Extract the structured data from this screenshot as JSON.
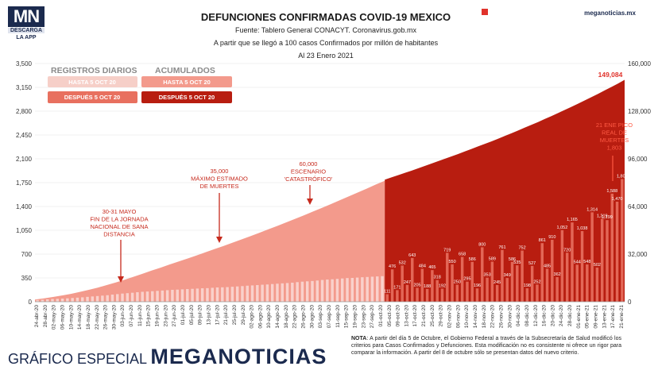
{
  "logo": {
    "letters": "MN",
    "line1": "DESCARGA",
    "line2": "LA APP"
  },
  "header": {
    "title": "DEFUNCIONES CONFIRMADAS COVID-19 MEXICO",
    "source": "Fuente: Tablero General CONACYT. Coronavirus.gob.mx",
    "subtitle": "A partir que se llegó a 100 casos Confirmados por millón de habitantes",
    "date": "Al  23 Enero 2021",
    "brand": "meganoticias.mx"
  },
  "footer": {
    "left_small": "GRÁFICO ESPECIAL",
    "left_big": "MEGANOTICIAS",
    "note_label": "NOTA",
    "note_text": ": A partir del día 5 de Octubre, el Gobierno Federal a través de la Subsecretaría de Salud modificó los criterios para Casos Confirmados y Defunciones. Esta modificación no es consistente ni ofrece un rigor para comparar la información. A partir del 8 de octubre sólo se presentan datos del nuevo criterio."
  },
  "legend": {
    "diarios_title": "REGISTROS DIARIOS",
    "acumulados_title": "ACUMULADOS",
    "hasta": "HASTA 5 OCT 20",
    "despues": "DESPUÉS 5 OCT 20"
  },
  "colors": {
    "daily_before": "#f6cfc8",
    "daily_after": "#e8705f",
    "cum_before": "#f39a8c",
    "cum_after": "#b81d10",
    "annotation": "#c62a1d",
    "axis_text": "#333333"
  },
  "annotations": {
    "a1": [
      "30-31 MAYO",
      "FIN DE LA JORNADA",
      "NACIONAL DE SANA",
      "DISTANCIA"
    ],
    "a2": [
      "35,000",
      "MÁXIMO ESTIMADO",
      "DE MUERTES"
    ],
    "a3": [
      "60,000",
      "ESCENARIO",
      "'CATASTRÓFICO'"
    ],
    "a4": [
      "21 ENE PICO",
      "REAL DE",
      "MUERTES",
      "1,803"
    ],
    "last_total": "149,084"
  },
  "chart_data": {
    "type": "bar",
    "title": "DEFUNCIONES CONFIRMADAS COVID-19 MEXICO",
    "left_axis": {
      "ylim": [
        0,
        3500
      ],
      "ticks": [
        "0",
        "350",
        "700",
        "1,050",
        "1,400",
        "1,750",
        "2,100",
        "2,450",
        "2,800",
        "3,150",
        "3,500"
      ]
    },
    "right_axis": {
      "ylim": [
        0,
        160000
      ],
      "ticks": [
        "0",
        "32,000",
        "64,000",
        "96,000",
        "128,000",
        "160,000"
      ]
    },
    "x_tick_labels": [
      "24-abr-20",
      "28-abr-20",
      "02-may-20",
      "06-may-20",
      "10-may-20",
      "14-may-20",
      "18-may-20",
      "22-may-20",
      "26-may-20",
      "30-may-20",
      "03-jun-20",
      "07-jun-20",
      "11-jun-20",
      "15-jun-20",
      "19-jun-20",
      "23-jun-20",
      "27-jun-20",
      "01-jul-20",
      "05-jul-20",
      "09-jul-20",
      "13-jul-20",
      "17-jul-20",
      "21-jul-20",
      "25-jul-20",
      "29-jul-20",
      "02-ago-20",
      "06-ago-20",
      "10-ago-20",
      "14-ago-20",
      "18-ago-20",
      "22-ago-20",
      "26-ago-20",
      "30-ago-20",
      "03-sep-20",
      "07-sep-20",
      "11-sep-20",
      "15-sep-20",
      "19-sep-20",
      "23-sep-20",
      "27-sep-20",
      "01-oct-20",
      "05-oct-20",
      "09-oct-20",
      "13-oct-20",
      "17-oct-20",
      "21-oct-20",
      "25-oct-20",
      "29-oct-20",
      "02-nov-20",
      "06-nov-20",
      "10-nov-20",
      "14-nov-20",
      "18-nov-20",
      "22-nov-20",
      "26-nov-20",
      "30-nov-20",
      "04-dic-20",
      "08-dic-20",
      "12-dic-20",
      "16-dic-20",
      "20-dic-20",
      "24-dic-20",
      "28-dic-20",
      "01-ene-21",
      "05-ene-21",
      "09-ene-21",
      "13-ene-21",
      "17-ene-21",
      "21-ene-21"
    ],
    "series": [
      {
        "name": "HASTA 5 OCT 20",
        "daily": [
          25,
          30,
          35,
          40,
          42,
          46,
          50,
          55,
          60,
          65,
          72,
          78,
          84,
          90,
          96,
          105,
          112,
          120,
          126,
          132,
          140,
          146,
          150,
          155,
          160,
          165,
          170,
          175,
          178,
          182,
          186,
          190,
          194,
          198,
          200,
          205,
          210,
          212,
          215,
          220,
          225,
          230,
          236,
          240,
          245,
          250,
          254,
          260,
          265,
          270,
          275,
          280,
          288,
          295,
          300,
          305,
          312,
          320,
          326,
          330,
          336,
          342,
          348,
          350,
          355,
          360,
          364,
          368,
          372,
          376
        ],
        "cumulative": [
          1500,
          2300,
          3200,
          4200,
          5300,
          6600,
          8000,
          9500,
          11200,
          12900,
          14800,
          16800,
          18800,
          20900,
          22900,
          25000,
          27000,
          29000,
          31100,
          33200,
          35300,
          37400,
          39600,
          41800,
          44000,
          46300,
          48600,
          50900,
          53300,
          55700,
          58100,
          60600,
          63100,
          65600,
          68200,
          70800,
          73400,
          76000,
          78700,
          81300
        ]
      },
      {
        "name": "DESPUÉS 5 OCT 20",
        "daily": [
          111,
          476,
          171,
          532,
          247,
          643,
          205,
          484,
          188,
          465,
          318,
          192,
          719,
          550,
          250,
          658,
          295,
          586,
          196,
          800,
          353,
          589,
          245,
          761,
          349,
          586,
          535,
          752,
          198,
          527,
          252,
          861,
          485,
          910,
          362,
          1052,
          720,
          1165,
          544,
          1038,
          548,
          1314,
          502,
          1219,
          1199,
          1588,
          1470,
          1803
        ],
        "cumulative": [
          82000,
          83500,
          85000,
          86500,
          88000,
          89600,
          91200,
          92800,
          94400,
          96000,
          97600,
          99200,
          100900,
          102600,
          104300,
          106000,
          107700,
          109500,
          111300,
          113100,
          115000,
          116900,
          118800,
          120700,
          122700,
          124700,
          126700,
          128800,
          130900,
          133000,
          135200,
          137400,
          139600,
          141900,
          144200,
          146500,
          149084
        ]
      }
    ],
    "daily_labels_after": [
      "111",
      "476",
      "171",
      "532",
      "247",
      "643",
      "205",
      "484",
      "188",
      "465",
      "318",
      "192",
      "719",
      "550",
      "250",
      "658",
      "295",
      "586",
      "196",
      "800",
      "353",
      "589",
      "245",
      "761",
      "349",
      "586",
      "535",
      "752",
      "198",
      "527",
      "252",
      "861",
      "485",
      "910",
      "362",
      "1,052",
      "720",
      "1,165",
      "544",
      "1,038",
      "548",
      "1,314",
      "502",
      "1,219",
      "1,199",
      "1,588",
      "1,470",
      "1,803"
    ]
  }
}
